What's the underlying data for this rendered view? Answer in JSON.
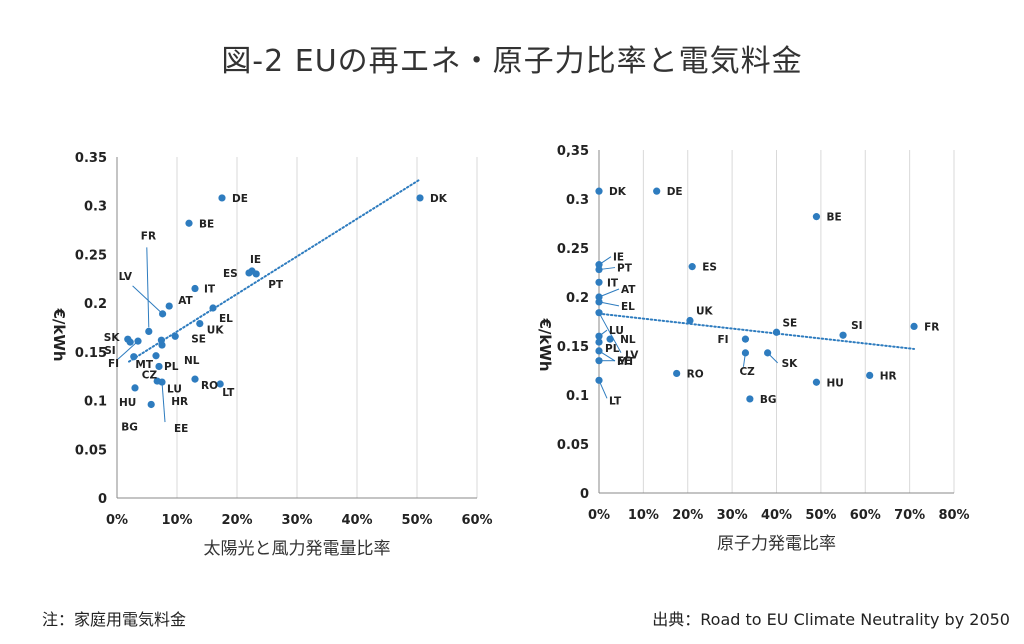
{
  "title": "図-2 EUの再エネ・原子力比率と電気料金",
  "note_left": "注：家庭用電気料金",
  "note_right": "出典：Road to EU Climate Neutrality by 2050",
  "colors": {
    "point": "#2e7cbf",
    "trend": "#2e7cbf",
    "grid": "#d9d9d9",
    "axis": "#888888"
  },
  "chart_data": [
    {
      "type": "scatter",
      "xlabel": "太陽光と風力発電量比率",
      "ylabel": "€/kWh",
      "xlim": [
        0,
        0.6
      ],
      "ylim": [
        0,
        0.35
      ],
      "xticks": [
        0,
        0.1,
        0.2,
        0.3,
        0.4,
        0.5,
        0.6
      ],
      "xtick_labels": [
        "0%",
        "10%",
        "20%",
        "30%",
        "40%",
        "50%",
        "60%"
      ],
      "yticks": [
        0,
        0.05,
        0.1,
        0.15,
        0.2,
        0.25,
        0.3,
        0.35
      ],
      "ytick_labels": [
        "0",
        "0.05",
        "0.1",
        "0.15",
        "0.2",
        "0.25",
        "0.3",
        "0.35"
      ],
      "grid": "vertical",
      "trendline": {
        "x": [
          0.02,
          0.505
        ],
        "y": [
          0.14,
          0.327
        ]
      },
      "points": [
        {
          "label": "DE",
          "x": 0.175,
          "y": 0.308
        },
        {
          "label": "DK",
          "x": 0.505,
          "y": 0.308
        },
        {
          "label": "BE",
          "x": 0.12,
          "y": 0.282
        },
        {
          "label": "IE",
          "x": 0.225,
          "y": 0.233
        },
        {
          "label": "ES",
          "x": 0.22,
          "y": 0.231
        },
        {
          "label": "PT",
          "x": 0.232,
          "y": 0.23
        },
        {
          "label": "IT",
          "x": 0.13,
          "y": 0.215
        },
        {
          "label": "FR",
          "x": 0.053,
          "y": 0.171
        },
        {
          "label": "AT",
          "x": 0.087,
          "y": 0.197
        },
        {
          "label": "EL",
          "x": 0.16,
          "y": 0.195
        },
        {
          "label": "UK",
          "x": 0.138,
          "y": 0.179
        },
        {
          "label": "LV",
          "x": 0.076,
          "y": 0.189
        },
        {
          "label": "SE",
          "x": 0.097,
          "y": 0.166
        },
        {
          "label": "SK",
          "x": 0.018,
          "y": 0.163
        },
        {
          "label": "SI",
          "x": 0.022,
          "y": 0.16
        },
        {
          "label": "FI",
          "x": 0.035,
          "y": 0.161
        },
        {
          "label": "CZ",
          "x": 0.028,
          "y": 0.145
        },
        {
          "label": "NL",
          "x": 0.075,
          "y": 0.157
        },
        {
          "label": "PL",
          "x": 0.065,
          "y": 0.146
        },
        {
          "label": "MT",
          "x": 0.074,
          "y": 0.162
        },
        {
          "label": "LU",
          "x": 0.07,
          "y": 0.135
        },
        {
          "label": "HU",
          "x": 0.03,
          "y": 0.113
        },
        {
          "label": "BG",
          "x": 0.057,
          "y": 0.096
        },
        {
          "label": "HR",
          "x": 0.067,
          "y": 0.12
        },
        {
          "label": "EE",
          "x": 0.075,
          "y": 0.119
        },
        {
          "label": "RO",
          "x": 0.13,
          "y": 0.122
        },
        {
          "label": "LT",
          "x": 0.172,
          "y": 0.117
        }
      ]
    },
    {
      "type": "scatter",
      "xlabel": "原子力発電比率",
      "ylabel": "€/kWh",
      "xlim": [
        0,
        0.8
      ],
      "ylim": [
        0,
        0.35
      ],
      "xticks": [
        0,
        0.1,
        0.2,
        0.3,
        0.4,
        0.5,
        0.6,
        0.7,
        0.8
      ],
      "xtick_labels": [
        "0%",
        "10%",
        "20%",
        "30%",
        "40%",
        "50%",
        "60%",
        "70%",
        "80%"
      ],
      "yticks": [
        0,
        0.05,
        0.1,
        0.15,
        0.2,
        0.25,
        0.3,
        0.35
      ],
      "ytick_labels": [
        "0",
        "0.05",
        "0.1",
        "0.15",
        "0.2",
        "0.25",
        "0.3",
        "0,35"
      ],
      "grid": "vertical",
      "trendline": {
        "x": [
          0,
          0.71
        ],
        "y": [
          0.183,
          0.147
        ]
      },
      "points": [
        {
          "label": "DK",
          "x": 0.0,
          "y": 0.308
        },
        {
          "label": "DE",
          "x": 0.13,
          "y": 0.308
        },
        {
          "label": "BE",
          "x": 0.49,
          "y": 0.282
        },
        {
          "label": "IE",
          "x": 0.0,
          "y": 0.233
        },
        {
          "label": "PT",
          "x": 0.0,
          "y": 0.228
        },
        {
          "label": "ES",
          "x": 0.21,
          "y": 0.231
        },
        {
          "label": "IT",
          "x": 0.0,
          "y": 0.215
        },
        {
          "label": "AT",
          "x": 0.0,
          "y": 0.2
        },
        {
          "label": "EL",
          "x": 0.0,
          "y": 0.195
        },
        {
          "label": "LV",
          "x": 0.0,
          "y": 0.184
        },
        {
          "label": "UK",
          "x": 0.205,
          "y": 0.176
        },
        {
          "label": "LU",
          "x": 0.0,
          "y": 0.16
        },
        {
          "label": "NL",
          "x": 0.025,
          "y": 0.157
        },
        {
          "label": "PL",
          "x": 0.0,
          "y": 0.154
        },
        {
          "label": "MT",
          "x": 0.0,
          "y": 0.145
        },
        {
          "label": "SE",
          "x": 0.4,
          "y": 0.164
        },
        {
          "label": "SI",
          "x": 0.55,
          "y": 0.161
        },
        {
          "label": "FR",
          "x": 0.71,
          "y": 0.17
        },
        {
          "label": "FI",
          "x": 0.33,
          "y": 0.157
        },
        {
          "label": "CZ",
          "x": 0.33,
          "y": 0.143
        },
        {
          "label": "SK",
          "x": 0.38,
          "y": 0.143
        },
        {
          "label": "RO",
          "x": 0.175,
          "y": 0.122
        },
        {
          "label": "HU",
          "x": 0.49,
          "y": 0.113
        },
        {
          "label": "HR",
          "x": 0.61,
          "y": 0.12
        },
        {
          "label": "EE",
          "x": 0.0,
          "y": 0.135
        },
        {
          "label": "LT",
          "x": 0.0,
          "y": 0.115
        },
        {
          "label": "BG",
          "x": 0.34,
          "y": 0.096
        }
      ]
    }
  ]
}
